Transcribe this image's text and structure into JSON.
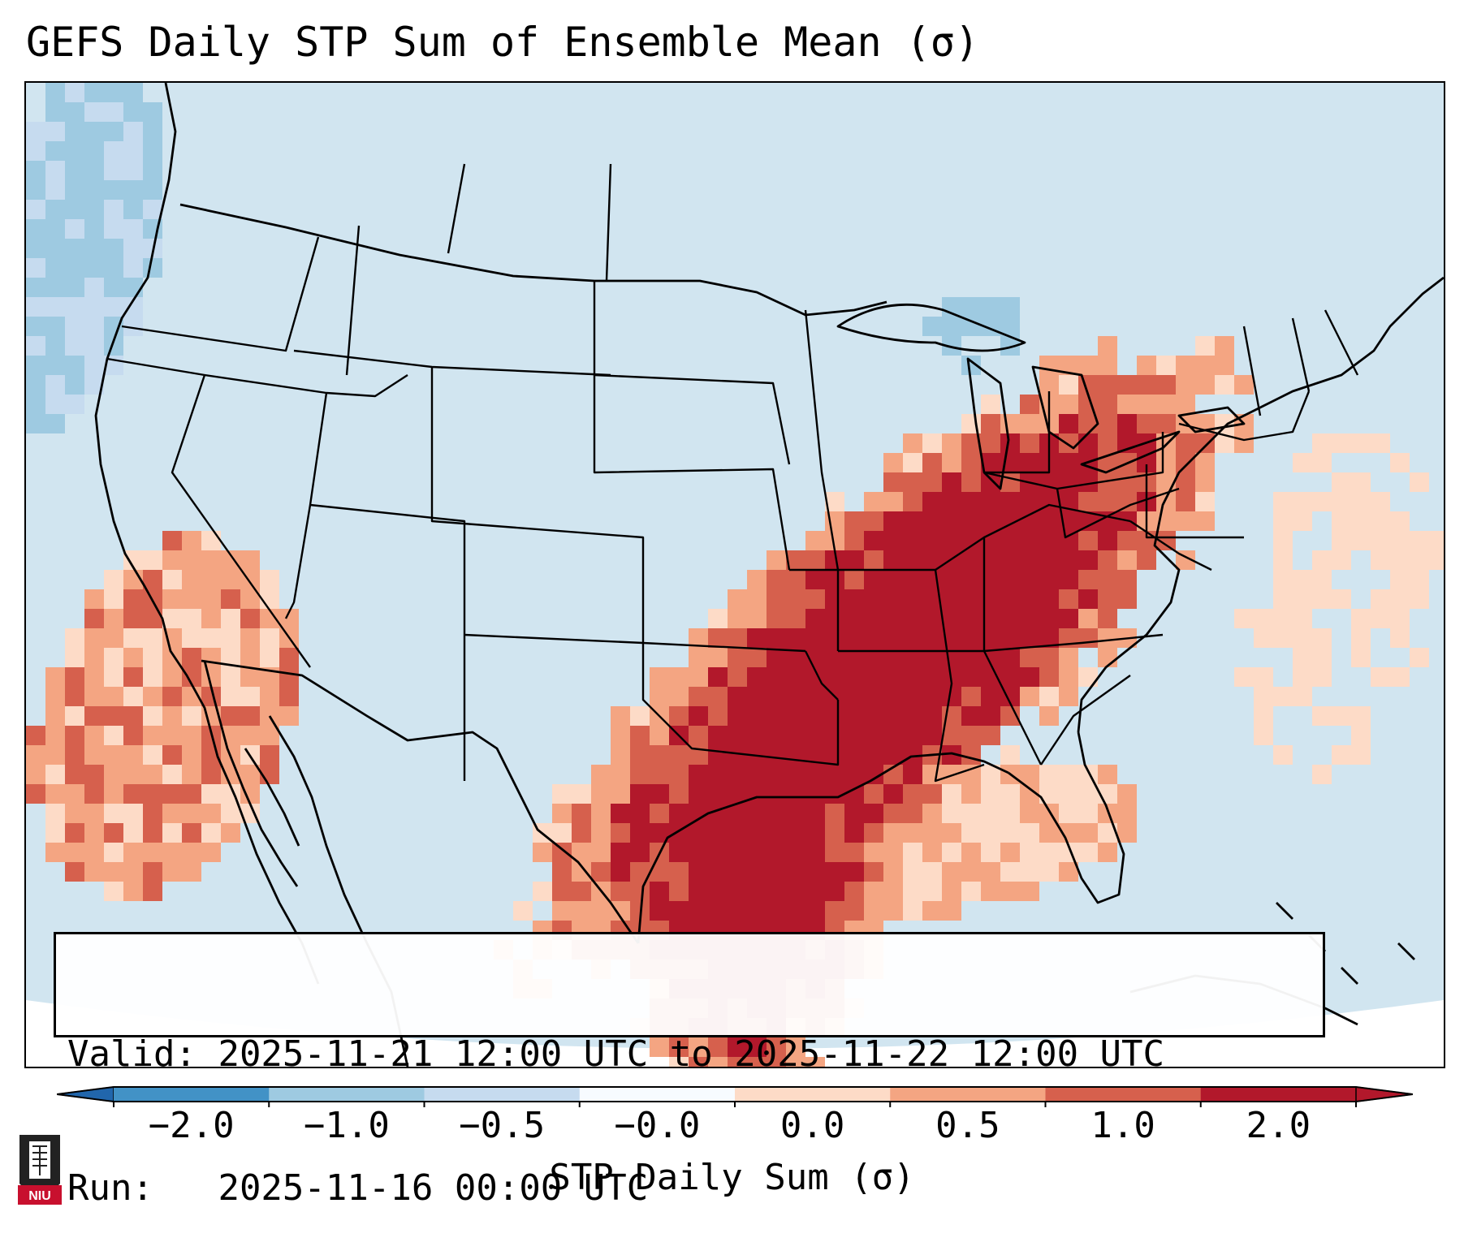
{
  "title": "GEFS Daily STP Sum of Ensemble Mean (σ)",
  "info": {
    "valid_label": "Valid:",
    "valid_value": "2025-11-21 12:00 UTC to 2025-11-22 12:00 UTC",
    "run_label": "Run:",
    "run_value": "2025-11-16 00:00 UTC"
  },
  "colorbar": {
    "label": "STP Daily Sum (σ)",
    "ticks": [
      "−2.0",
      "−1.0",
      "−0.5",
      "−0.0",
      "0.0",
      "0.5",
      "1.0",
      "2.0"
    ],
    "colors": [
      "#4292c6",
      "#9ecae1",
      "#c6dbef",
      "#f7fbff",
      "#fddbc7",
      "#f4a582",
      "#d6604d",
      "#b2182b"
    ],
    "under_color": "#2166ac",
    "over_color": "#b2182b"
  },
  "map": {
    "ocean_color": "#d1e5f0",
    "outline_color": "#000000",
    "projection": "Lambert conformal CONUS",
    "field": "STP daily sum standard anomaly"
  },
  "logo": {
    "text": "NIU",
    "color": "#c8102e"
  }
}
